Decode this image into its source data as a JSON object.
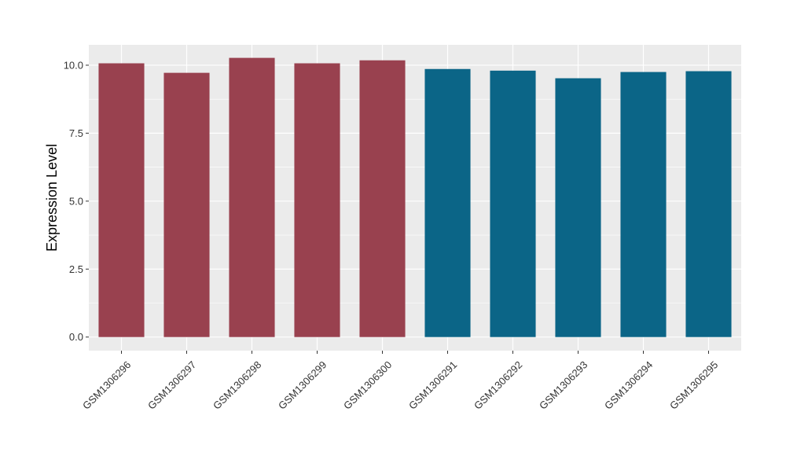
{
  "chart_data": {
    "type": "bar",
    "title": "",
    "xlabel": "",
    "ylabel": "Expression Level",
    "ylim": [
      -0.5,
      10.75
    ],
    "yticks": [
      0.0,
      2.5,
      5.0,
      7.5,
      10.0
    ],
    "ytick_labels": [
      "0.0",
      "2.5",
      "5.0",
      "7.5",
      "10.0"
    ],
    "grid": true,
    "legend": "none",
    "categories": [
      "GSM1306296",
      "GSM1306297",
      "GSM1306298",
      "GSM1306299",
      "GSM1306300",
      "GSM1306291",
      "GSM1306292",
      "GSM1306293",
      "GSM1306294",
      "GSM1306295"
    ],
    "values": [
      10.07,
      9.72,
      10.27,
      10.07,
      10.18,
      9.86,
      9.8,
      9.52,
      9.75,
      9.78
    ],
    "bar_colors": [
      "#99414f",
      "#99414f",
      "#99414f",
      "#99414f",
      "#99414f",
      "#0b6587",
      "#0b6587",
      "#0b6587",
      "#0b6587",
      "#0b6587"
    ],
    "panel_background": "#ebebeb",
    "grid_color": "#ffffff"
  }
}
